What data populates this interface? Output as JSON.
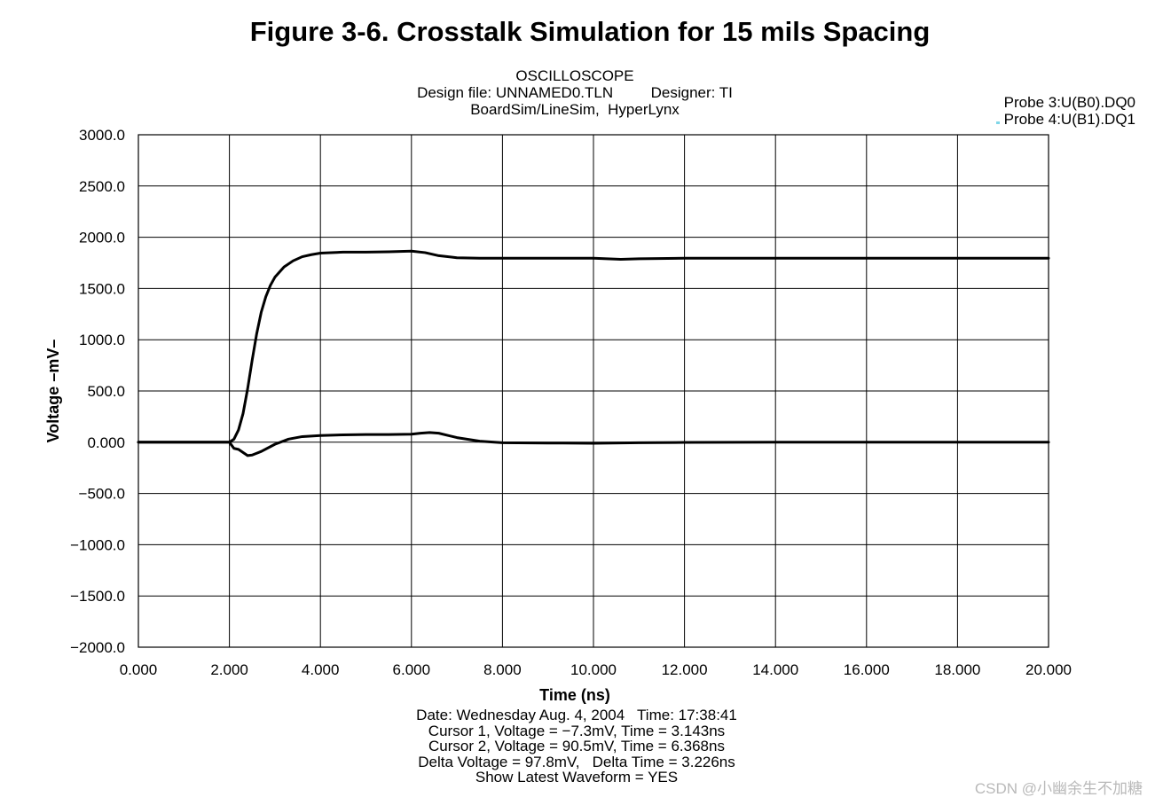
{
  "figure_title": "Figure 3-6. Crosstalk Simulation for 15 mils Spacing",
  "header": {
    "line1": "OSCILLOSCOPE",
    "line2": "Design file: UNNAMED0.TLN         Designer: TI",
    "line3": "BoardSim/LineSim,  HyperLynx"
  },
  "legend": {
    "probe3": "Probe 3:U(B0).DQ0",
    "probe4": "Probe 4:U(B1).DQ1"
  },
  "footer": {
    "date_line": "Date: Wednesday Aug. 4, 2004   Time: 17:38:41",
    "cursor1": "Cursor 1, Voltage = −7.3mV, Time = 3.143ns",
    "cursor2": "Cursor 2, Voltage = 90.5mV, Time = 6.368ns",
    "delta": "Delta Voltage = 97.8mV,   Delta Time = 3.226ns",
    "show_latest": "Show Latest Waveform = YES"
  },
  "watermark": "CSDN @小幽余生不加糖",
  "chart_data": {
    "type": "line",
    "xlabel": "Time  (ns)",
    "ylabel": "Voltage  –mV–",
    "xlim": [
      0,
      20
    ],
    "ylim": [
      -2000,
      3000
    ],
    "grid": true,
    "x_ticks": [
      0,
      2,
      4,
      6,
      8,
      10,
      12,
      14,
      16,
      18,
      20
    ],
    "x_tick_labels": [
      "0.000",
      "2.000",
      "4.000",
      "6.000",
      "8.000",
      "10.000",
      "12.000",
      "14.000",
      "16.000",
      "18.000",
      "20.000"
    ],
    "y_ticks": [
      3000,
      2500,
      2000,
      1500,
      1000,
      500,
      0,
      -500,
      -1000,
      -1500,
      -2000
    ],
    "y_tick_labels": [
      "3000.0",
      "2500.0",
      "2000.0",
      "1500.0",
      "1000.0",
      "500.0",
      "0.000",
      "−500.0",
      "−1000.0",
      "−1500.0",
      "−2000.0"
    ],
    "series": [
      {
        "name": "Probe 3:U(B0).DQ0",
        "color": "#000000",
        "x": [
          0,
          2.0,
          2.1,
          2.2,
          2.3,
          2.4,
          2.5,
          2.6,
          2.7,
          2.8,
          2.9,
          3.0,
          3.2,
          3.4,
          3.6,
          3.8,
          4.0,
          4.5,
          5.0,
          5.5,
          6.0,
          6.3,
          6.6,
          7.0,
          7.5,
          8.0,
          9.0,
          10.0,
          10.6,
          11.0,
          12.0,
          14.0,
          16.0,
          18.0,
          20.0
        ],
        "y": [
          0,
          0,
          30,
          120,
          280,
          520,
          800,
          1060,
          1270,
          1420,
          1530,
          1610,
          1710,
          1770,
          1810,
          1830,
          1845,
          1855,
          1855,
          1858,
          1865,
          1850,
          1820,
          1800,
          1795,
          1795,
          1795,
          1795,
          1785,
          1790,
          1795,
          1795,
          1795,
          1795,
          1795
        ]
      },
      {
        "name": "Probe 4:U(B1).DQ1",
        "color": "#000000",
        "x": [
          0,
          2.0,
          2.1,
          2.2,
          2.3,
          2.4,
          2.5,
          2.7,
          3.0,
          3.3,
          3.6,
          4.0,
          4.5,
          5.0,
          5.5,
          6.0,
          6.2,
          6.4,
          6.6,
          7.0,
          7.5,
          8.0,
          9.0,
          10.0,
          11.0,
          12.0,
          14.0,
          16.0,
          18.0,
          20.0
        ],
        "y": [
          0,
          0,
          -60,
          -70,
          -100,
          -130,
          -125,
          -90,
          -20,
          30,
          55,
          65,
          72,
          75,
          75,
          78,
          88,
          95,
          88,
          45,
          10,
          -5,
          -8,
          -10,
          -5,
          -2,
          0,
          0,
          0,
          0
        ]
      }
    ]
  }
}
